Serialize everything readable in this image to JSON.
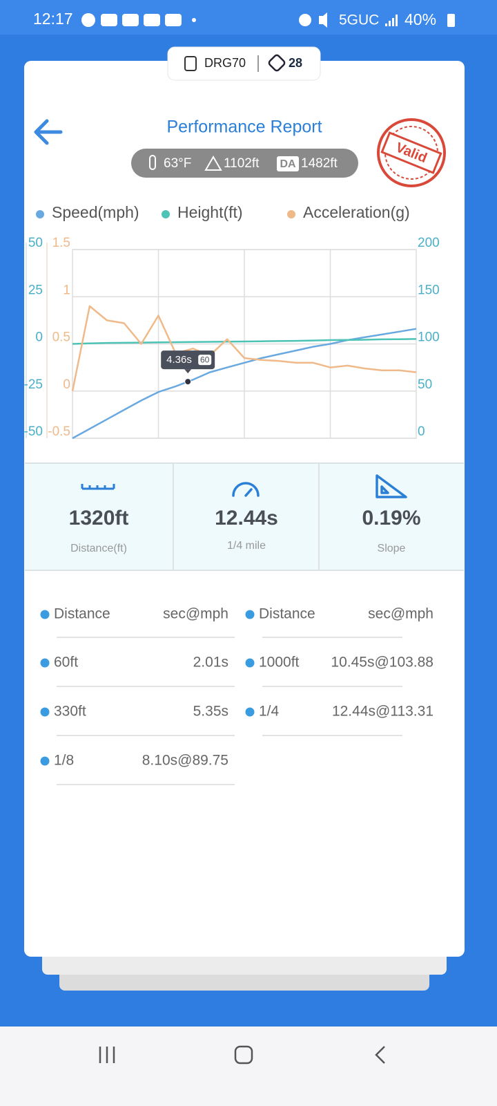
{
  "status_bar": {
    "time": "12:17",
    "network": "5GUC",
    "battery": "40%"
  },
  "device": {
    "name": "DRG70",
    "count": 28
  },
  "header": {
    "title": "Performance Report",
    "stamp": "Valid"
  },
  "conditions": {
    "temperature": "63°F",
    "altitude": "1102ft",
    "density_altitude_label": "DA",
    "density_altitude": "1482ft"
  },
  "chart_data": {
    "type": "line",
    "series": [
      {
        "name": "Speed(mph)",
        "color": "#6aa8e0",
        "axis": "y2",
        "values": [
          0,
          10,
          20,
          30,
          40,
          49,
          55,
          62,
          70,
          75,
          80,
          85,
          89,
          93,
          97,
          100,
          104,
          107,
          110,
          113,
          116
        ]
      },
      {
        "name": "Height(ft)",
        "color": "#4cc3b5",
        "axis": "y",
        "values": [
          0,
          0.3,
          0.5,
          0.6,
          0.7,
          0.8,
          0.9,
          1,
          1.1,
          1.2,
          1.3,
          1.4,
          1.5,
          1.6,
          1.8,
          2,
          2.1,
          2.2,
          2.4,
          2.5,
          2.6
        ]
      },
      {
        "name": "Acceleration(g)",
        "color": "#f0b98a",
        "axis": "y3",
        "values": [
          0,
          0.9,
          0.75,
          0.72,
          0.5,
          0.8,
          0.4,
          0.45,
          0.38,
          0.55,
          0.35,
          0.33,
          0.32,
          0.3,
          0.3,
          0.25,
          0.27,
          0.24,
          0.22,
          0.22,
          0.2
        ]
      }
    ],
    "ylim": [
      -50,
      50
    ],
    "yticks": [
      -50,
      -25,
      0,
      25,
      50
    ],
    "y3lim": [
      -0.5,
      1.5
    ],
    "y3ticks": [
      -0.5,
      0,
      0.5,
      1,
      1.5
    ],
    "y2lim": [
      0,
      200
    ],
    "y2ticks": [
      0,
      50,
      100,
      150,
      200
    ],
    "grid": true,
    "annotation": {
      "time": "4.36s",
      "speed": 60
    }
  },
  "stats": [
    {
      "value": "1320ft",
      "label": "Distance(ft)"
    },
    {
      "value": "12.44s",
      "label": "1/4 mile"
    },
    {
      "value": "0.19%",
      "label": "Slope"
    }
  ],
  "table": {
    "header": [
      "Distance",
      "sec@mph",
      "Distance",
      "sec@mph"
    ],
    "rows": [
      [
        "60ft",
        "2.01s",
        "1000ft",
        "10.45s@103.88"
      ],
      [
        "330ft",
        "5.35s",
        "1/4",
        "12.44s@113.31"
      ],
      [
        "1/8",
        "8.10s@89.75"
      ]
    ]
  }
}
